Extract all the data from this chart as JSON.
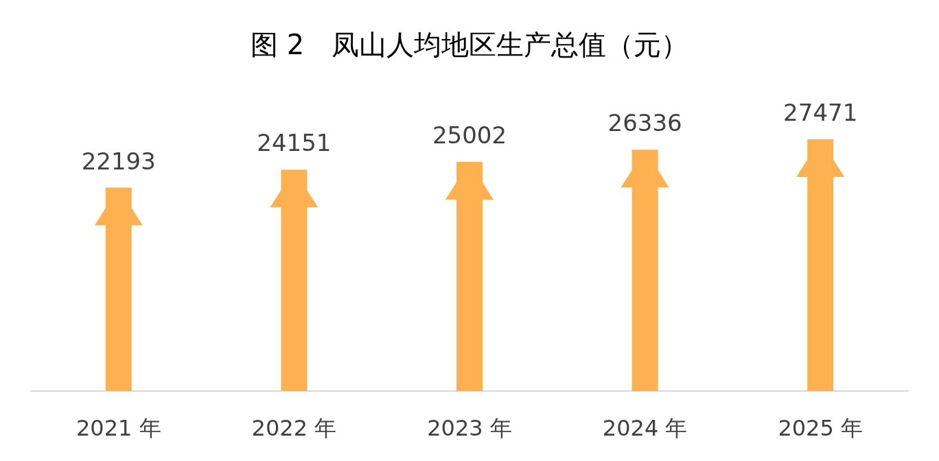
{
  "chart_data": {
    "type": "bar",
    "title": "图 2　凤山人均地区生产总值（元）",
    "categories": [
      "2021 年",
      "2022 年",
      "2023 年",
      "2024 年",
      "2025 年"
    ],
    "values": [
      22193,
      24151,
      25002,
      26336,
      27471
    ],
    "color": "#ffb050",
    "data_labels": true
  }
}
